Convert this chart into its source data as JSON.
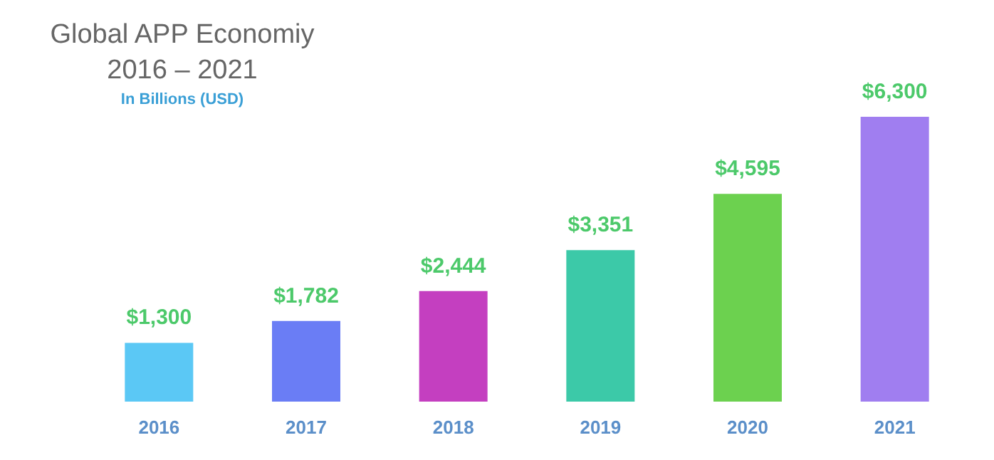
{
  "chart_data": {
    "type": "bar",
    "title": "Global APP Economiy",
    "subtitle": "2016 – 2021",
    "annotations": [
      "In Billions (USD)"
    ],
    "categories": [
      "2016",
      "2017",
      "2018",
      "2019",
      "2020",
      "2021"
    ],
    "values": [
      1300,
      1782,
      2444,
      3351,
      4595,
      6300
    ],
    "value_labels": [
      "$1,300",
      "$1,782",
      "$2,444",
      "$3,351",
      "$4,595",
      "$6,300"
    ],
    "colors": [
      "#5bc8f5",
      "#6a7df5",
      "#c43fc0",
      "#3cc9a8",
      "#6cd14f",
      "#a07ef0"
    ]
  }
}
